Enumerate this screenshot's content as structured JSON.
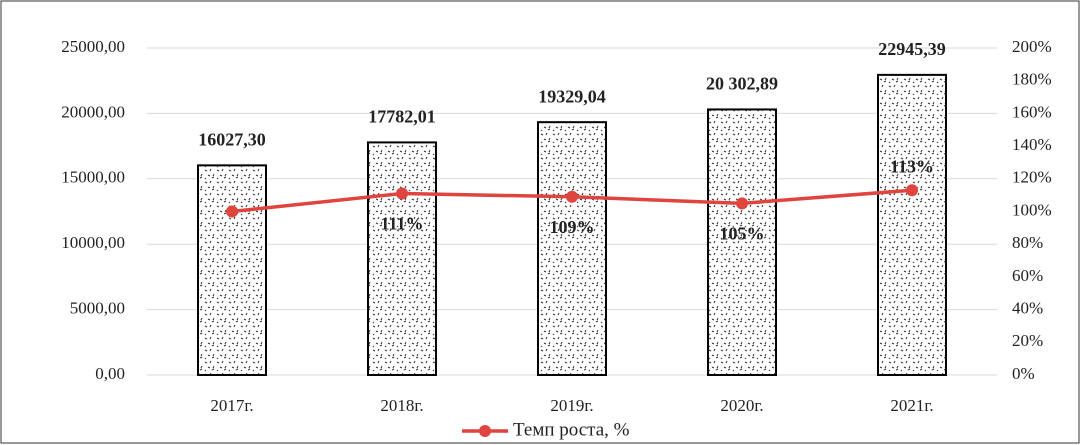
{
  "chart_data": {
    "type": "bar",
    "categories": [
      "2017г.",
      "2018г.",
      "2019г.",
      "2020г.",
      "2021г."
    ],
    "series": [
      {
        "type": "bar",
        "color": "#000000",
        "values": [
          16027.3,
          17782.01,
          19329.04,
          20302.89,
          22945.39
        ],
        "value_labels": [
          "16027,30",
          "17782,01",
          "19329,04",
          "20 302,89",
          "22945,39"
        ]
      },
      {
        "type": "line",
        "name": "Темп роста, %",
        "color": "#e0443e",
        "axis": "y2",
        "values": [
          100,
          111,
          109,
          105,
          113
        ],
        "value_labels": [
          null,
          "111%",
          "109%",
          "105%",
          "113%"
        ]
      }
    ],
    "ylim": [
      0,
      25000
    ],
    "yticks": [
      {
        "value": 0,
        "label": "0,00"
      },
      {
        "value": 5000,
        "label": "5000,00"
      },
      {
        "value": 10000,
        "label": "10000,00"
      },
      {
        "value": 15000,
        "label": "15000,00"
      },
      {
        "value": 20000,
        "label": "20000,00"
      },
      {
        "value": 25000,
        "label": "25000,00"
      }
    ],
    "y2lim": [
      0,
      200
    ],
    "y2ticks": [
      {
        "value": 0,
        "label": "0%"
      },
      {
        "value": 20,
        "label": "20%"
      },
      {
        "value": 40,
        "label": "40%"
      },
      {
        "value": 60,
        "label": "60%"
      },
      {
        "value": 80,
        "label": "80%"
      },
      {
        "value": 100,
        "label": "100%"
      },
      {
        "value": 120,
        "label": "120%"
      },
      {
        "value": 140,
        "label": "140%"
      },
      {
        "value": 160,
        "label": "160%"
      },
      {
        "value": 180,
        "label": "180%"
      },
      {
        "value": 200,
        "label": "200%"
      }
    ],
    "grid": true,
    "legend": "bottom"
  }
}
